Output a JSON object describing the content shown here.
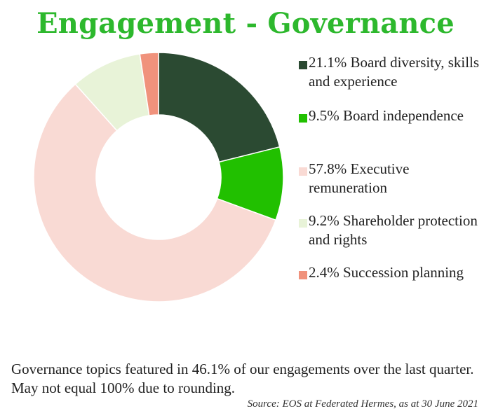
{
  "colors": {
    "title": "#2db82d",
    "text": "#222222"
  },
  "chart_data": {
    "type": "pie",
    "donut": true,
    "title": "Engagement - Governance",
    "legend_position": "right",
    "slices": [
      {
        "label": "21.1% Board diversity, skills and experience",
        "value": 21.1,
        "color": "#2b4a32"
      },
      {
        "label": "9.5% Board independence",
        "value": 9.5,
        "color": "#21c000"
      },
      {
        "label": "57.8% Executive remuneration",
        "value": 57.8,
        "color": "#f9dad4"
      },
      {
        "label": "9.2% Shareholder protection and rights",
        "value": 9.2,
        "color": "#e8f3d8"
      },
      {
        "label": "2.4% Succession planning",
        "value": 2.4,
        "color": "#f0927c"
      }
    ]
  },
  "footer": {
    "note": "Governance topics featured in 46.1% of our engagements over the last quarter. May not equal 100% due to rounding.",
    "source": "Source: EOS at Federated Hermes, as at 30 June 2021"
  }
}
